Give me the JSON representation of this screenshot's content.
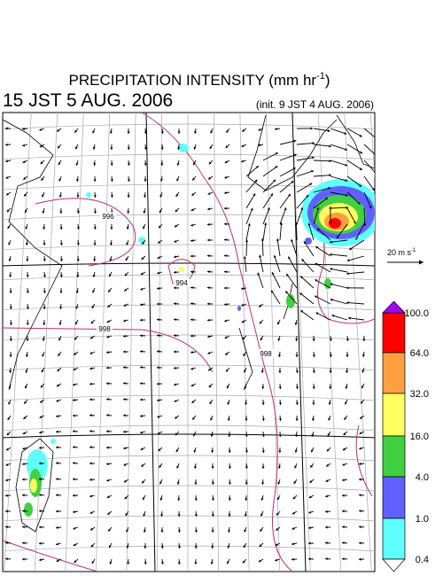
{
  "header": {
    "title": "PRECIPITATION INTENSITY (mm hr",
    "title_exponent": "-1",
    "title_close": ")",
    "valid_time": "15 JST 5 AUG. 2006",
    "init_time": "(init. 9 JST 4 AUG. 2006)"
  },
  "vector_key": {
    "label": "20 m s",
    "exponent": "-1"
  },
  "colorbar": {
    "labels": [
      "100.0",
      "64.0",
      "32.0",
      "16.0",
      "4.0",
      "1.0",
      "0.4"
    ],
    "colors": [
      "#ff0000",
      "#ffa040",
      "#ffff60",
      "#40d040",
      "#6060ff",
      "#60ffff"
    ],
    "over_color": "#a000ff",
    "under_color": "#ffffff"
  },
  "contour_labels": [
    "996",
    "998",
    "994",
    "998"
  ]
}
